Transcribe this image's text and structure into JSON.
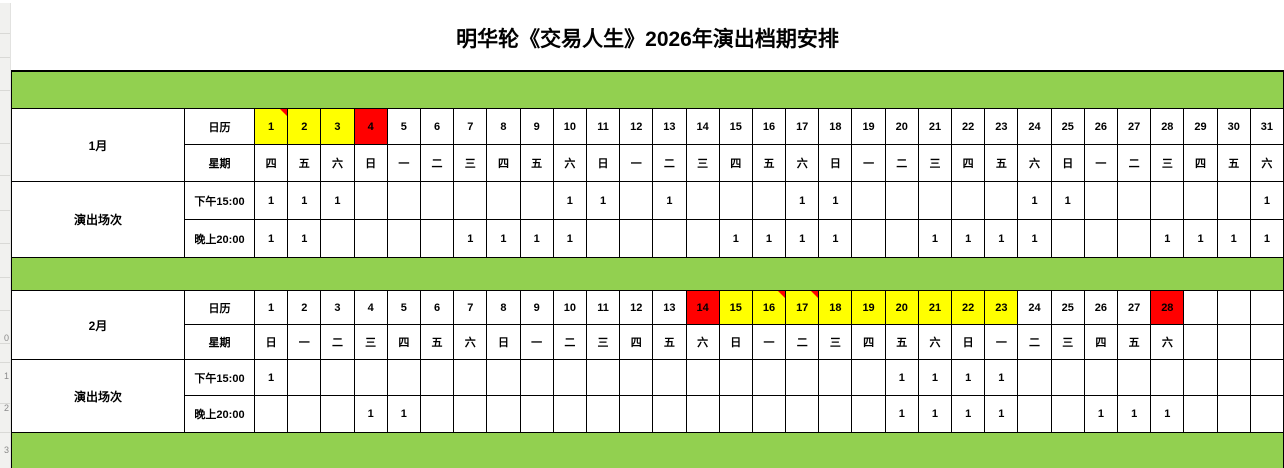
{
  "title": "明华轮《交易人生》2026年演出档期安排",
  "row_header": {
    "digits": [
      "0",
      "1",
      "2",
      "3"
    ]
  },
  "colors": {
    "separator_green": "#92D050",
    "highlight_yellow": "#FFFF00",
    "highlight_red": "#FF0000"
  },
  "months": [
    {
      "name": "1月",
      "sessions_label": "演出场次",
      "session_count": "1",
      "row_labels": {
        "calendar": "日历",
        "weekday": "星期",
        "afternoon": "下午15:00",
        "evening": "晚上20:00"
      },
      "days": [
        1,
        2,
        3,
        4,
        5,
        6,
        7,
        8,
        9,
        10,
        11,
        12,
        13,
        14,
        15,
        16,
        17,
        18,
        19,
        20,
        21,
        22,
        23,
        24,
        25,
        26,
        27,
        28,
        29,
        30,
        31
      ],
      "weekdays": [
        "四",
        "五",
        "六",
        "日",
        "一",
        "二",
        "三",
        "四",
        "五",
        "六",
        "日",
        "一",
        "二",
        "三",
        "四",
        "五",
        "六",
        "日",
        "一",
        "二",
        "三",
        "四",
        "五",
        "六",
        "日",
        "一",
        "二",
        "三",
        "四",
        "五",
        "六"
      ],
      "day_colors": {
        "1": "yellow",
        "2": "yellow",
        "3": "yellow",
        "4": "red"
      },
      "comment_days": [
        1
      ],
      "afternoon": [
        1,
        2,
        3,
        10,
        11,
        13,
        17,
        18,
        24,
        25,
        31
      ],
      "evening": [
        1,
        2,
        7,
        8,
        9,
        10,
        15,
        16,
        17,
        18,
        21,
        22,
        23,
        24,
        28,
        29,
        30,
        31
      ]
    },
    {
      "name": "2月",
      "sessions_label": "演出场次",
      "session_count": "1",
      "row_labels": {
        "calendar": "日历",
        "weekday": "星期",
        "afternoon": "下午15:00",
        "evening": "晚上20:00"
      },
      "days": [
        1,
        2,
        3,
        4,
        5,
        6,
        7,
        8,
        9,
        10,
        11,
        12,
        13,
        14,
        15,
        16,
        17,
        18,
        19,
        20,
        21,
        22,
        23,
        24,
        25,
        26,
        27,
        28,
        "",
        "",
        ""
      ],
      "weekdays": [
        "日",
        "一",
        "二",
        "三",
        "四",
        "五",
        "六",
        "日",
        "一",
        "二",
        "三",
        "四",
        "五",
        "六",
        "日",
        "一",
        "二",
        "三",
        "四",
        "五",
        "六",
        "日",
        "一",
        "二",
        "三",
        "四",
        "五",
        "六",
        "",
        "",
        ""
      ],
      "day_colors": {
        "14": "red",
        "15": "yellow",
        "16": "yellow",
        "17": "yellow",
        "18": "yellow",
        "19": "yellow",
        "20": "yellow",
        "21": "yellow",
        "22": "yellow",
        "23": "yellow",
        "28": "red"
      },
      "comment_days": [
        16,
        17
      ],
      "afternoon": [
        1,
        20,
        21,
        22,
        23
      ],
      "evening": [
        4,
        5,
        20,
        21,
        22,
        23,
        26,
        27,
        28
      ]
    }
  ]
}
